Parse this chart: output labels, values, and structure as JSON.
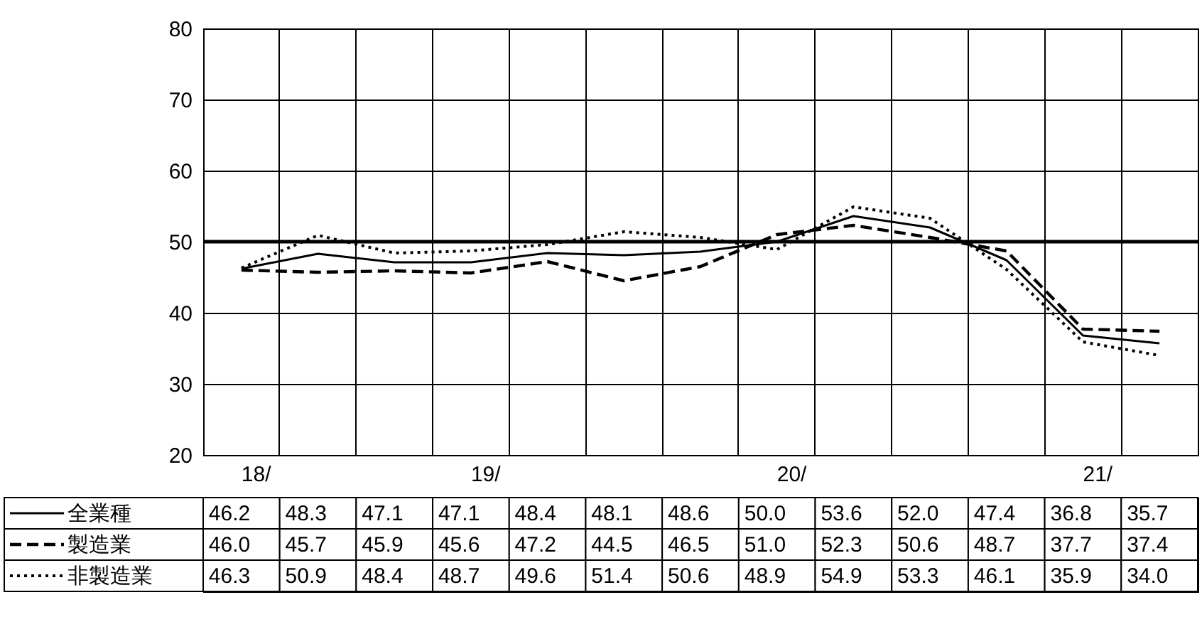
{
  "chart_data": {
    "type": "line",
    "categories": [
      "18/",
      null,
      null,
      "19/",
      null,
      null,
      null,
      "20/",
      null,
      null,
      null,
      "21/",
      null
    ],
    "series": [
      {
        "name": "全業種",
        "color": "#000000",
        "line_style": "solid",
        "values": [
          46.2,
          48.3,
          47.1,
          47.1,
          48.4,
          48.1,
          48.6,
          50.0,
          53.6,
          52.0,
          47.4,
          36.8,
          35.7
        ],
        "value_labels": [
          "46.2",
          "48.3",
          "47.1",
          "47.1",
          "48.4",
          "48.1",
          "48.6",
          "50.0",
          "53.6",
          "52.0",
          "47.4",
          "36.8",
          "35.7"
        ]
      },
      {
        "name": "製造業",
        "color": "#000000",
        "line_style": "dashed",
        "values": [
          46.0,
          45.7,
          45.9,
          45.6,
          47.2,
          44.5,
          46.5,
          51.0,
          52.3,
          50.6,
          48.7,
          37.7,
          37.4
        ],
        "value_labels": [
          "46.0",
          "45.7",
          "45.9",
          "45.6",
          "47.2",
          "44.5",
          "46.5",
          "51.0",
          "52.3",
          "50.6",
          "48.7",
          "37.7",
          "37.4"
        ]
      },
      {
        "name": "非製造業",
        "color": "#000000",
        "line_style": "dotted",
        "values": [
          46.3,
          50.9,
          48.4,
          48.7,
          49.6,
          51.4,
          50.6,
          48.9,
          54.9,
          53.3,
          46.1,
          35.9,
          34.0
        ],
        "value_labels": [
          "46.3",
          "50.9",
          "48.4",
          "48.7",
          "49.6",
          "51.4",
          "50.6",
          "48.9",
          "54.9",
          "53.3",
          "46.1",
          "35.9",
          "34.0"
        ]
      }
    ],
    "ylim": [
      20,
      80
    ],
    "yticks": [
      20,
      30,
      40,
      50,
      60,
      70,
      80
    ],
    "grid": true,
    "legend": "bottom left",
    "ref_lines": [
      {
        "axis": "y",
        "value": 50,
        "color": "#000000"
      }
    ]
  }
}
